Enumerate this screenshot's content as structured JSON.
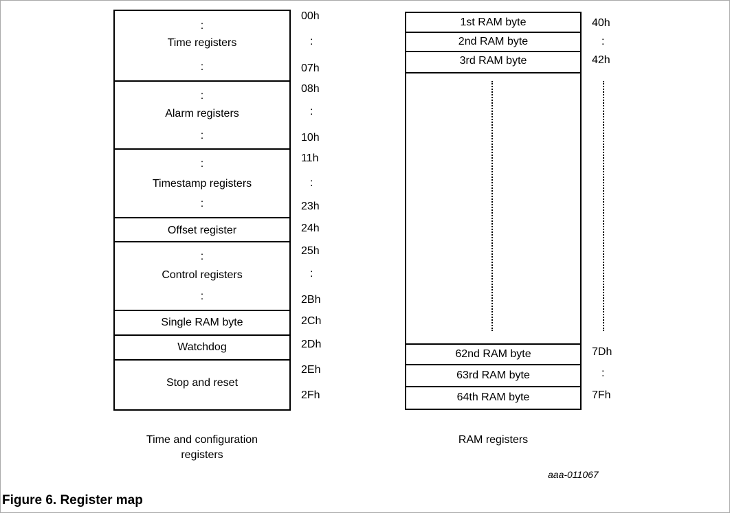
{
  "figure": {
    "title": "Figure 6.  Register map",
    "id": "aaa-011067"
  },
  "left_map": {
    "caption": [
      "Time and configuration",
      "registers"
    ],
    "groups": [
      {
        "label": "Time registers",
        "top_mark": ":",
        "bottom_mark": ":",
        "addr_start": "00h",
        "addr_mid": ":",
        "addr_end": "07h"
      },
      {
        "label": "Alarm registers",
        "top_mark": ":",
        "bottom_mark": ":",
        "addr_start": "08h",
        "addr_mid": ":",
        "addr_end": "10h"
      },
      {
        "label": "Timestamp registers",
        "top_mark": ":",
        "bottom_mark": ":",
        "addr_start": "11h",
        "addr_mid": ":",
        "addr_end": "23h"
      },
      {
        "label": "Offset register",
        "addr_start": "24h"
      },
      {
        "label": "Control registers",
        "top_mark": ":",
        "bottom_mark": ":",
        "addr_start": "25h",
        "addr_mid": ":",
        "addr_end": "2Bh"
      },
      {
        "label": "Single RAM byte",
        "addr_start": "2Ch"
      },
      {
        "label": "Watchdog",
        "addr_start": "2Dh"
      },
      {
        "label": "Stop and reset",
        "addr_start": "2Eh",
        "addr_end": "2Fh"
      }
    ]
  },
  "right_map": {
    "caption": "RAM registers",
    "top_rows": [
      {
        "label": "1st RAM byte",
        "addr": "40h"
      },
      {
        "label": "2nd RAM byte",
        "addr": ":"
      },
      {
        "label": "3rd RAM byte",
        "addr": "42h"
      }
    ],
    "bottom_rows": [
      {
        "label": "62nd RAM byte",
        "addr": "7Dh"
      },
      {
        "label": "63rd RAM byte",
        "addr": ":"
      },
      {
        "label": "64th RAM byte",
        "addr": "7Fh"
      }
    ]
  }
}
